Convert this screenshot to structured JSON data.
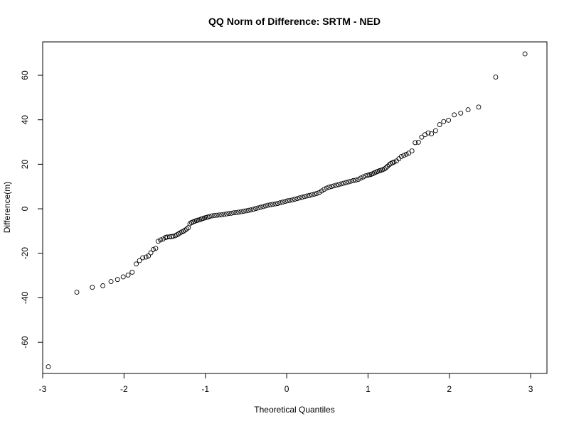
{
  "chart_data": {
    "type": "scatter",
    "title": "QQ Norm of Difference: SRTM - NED",
    "xlabel": "Theoretical Quantiles",
    "ylabel": "Difference(m)",
    "xlim": [
      -3.0,
      3.2
    ],
    "ylim": [
      -74,
      75
    ],
    "x_ticks": [
      -3,
      -2,
      -1,
      0,
      1,
      2,
      3
    ],
    "y_ticks": [
      -60,
      -40,
      -20,
      0,
      20,
      40,
      60
    ],
    "x_tick_labels": [
      "-3",
      "-2",
      "-1",
      "0",
      "1",
      "2",
      "3"
    ],
    "y_tick_labels": [
      "-60",
      "-40",
      "-20",
      "0",
      "20",
      "40",
      "60"
    ],
    "grid": false,
    "marker": "open-circle",
    "colors": {
      "marker_stroke": "#000000",
      "frame": "#000000",
      "background": "#ffffff"
    },
    "points": [
      [
        -2.93,
        -71.0
      ],
      [
        -2.58,
        -37.5
      ],
      [
        -2.39,
        -35.3
      ],
      [
        -2.26,
        -34.6
      ],
      [
        -2.16,
        -32.7
      ],
      [
        -2.08,
        -31.8
      ],
      [
        -2.01,
        -30.6
      ],
      [
        -1.95,
        -29.8
      ],
      [
        -1.9,
        -28.5
      ],
      [
        -1.85,
        -24.8
      ],
      [
        -1.81,
        -23.3
      ],
      [
        -1.77,
        -22.0
      ],
      [
        -1.73,
        -21.7
      ],
      [
        -1.7,
        -21.2
      ],
      [
        -1.67,
        -19.8
      ],
      [
        -1.64,
        -18.3
      ],
      [
        -1.61,
        -17.8
      ],
      [
        -1.58,
        -14.6
      ],
      [
        -1.55,
        -14.0
      ],
      [
        -1.52,
        -13.6
      ],
      [
        -1.49,
        -12.9
      ],
      [
        -1.47,
        -12.7
      ],
      [
        -1.44,
        -12.6
      ],
      [
        -1.42,
        -12.5
      ],
      [
        -1.4,
        -12.4
      ],
      [
        -1.37,
        -12.1
      ],
      [
        -1.35,
        -11.7
      ],
      [
        -1.33,
        -11.3
      ],
      [
        -1.31,
        -10.8
      ],
      [
        -1.29,
        -10.4
      ],
      [
        -1.27,
        -10.1
      ],
      [
        -1.25,
        -9.6
      ],
      [
        -1.23,
        -9.1
      ],
      [
        -1.21,
        -8.5
      ],
      [
        -1.19,
        -6.7
      ],
      [
        -1.17,
        -6.2
      ],
      [
        -1.15,
        -5.9
      ],
      [
        -1.13,
        -5.6
      ],
      [
        -1.11,
        -5.3
      ],
      [
        -1.09,
        -5.1
      ],
      [
        -1.07,
        -4.9
      ],
      [
        -1.05,
        -4.6
      ],
      [
        -1.03,
        -4.4
      ],
      [
        -1.01,
        -4.1
      ],
      [
        -0.99,
        -3.9
      ],
      [
        -0.97,
        -3.7
      ],
      [
        -0.95,
        -3.5
      ],
      [
        -0.92,
        -3.2
      ],
      [
        -0.89,
        -3.0
      ],
      [
        -0.86,
        -2.9
      ],
      [
        -0.83,
        -2.8
      ],
      [
        -0.8,
        -2.7
      ],
      [
        -0.77,
        -2.5
      ],
      [
        -0.74,
        -2.3
      ],
      [
        -0.71,
        -2.1
      ],
      [
        -0.68,
        -2.0
      ],
      [
        -0.65,
        -1.8
      ],
      [
        -0.62,
        -1.7
      ],
      [
        -0.59,
        -1.5
      ],
      [
        -0.56,
        -1.3
      ],
      [
        -0.53,
        -1.1
      ],
      [
        -0.5,
        -0.9
      ],
      [
        -0.47,
        -0.7
      ],
      [
        -0.44,
        -0.5
      ],
      [
        -0.41,
        -0.2
      ],
      [
        -0.38,
        0.1
      ],
      [
        -0.35,
        0.4
      ],
      [
        -0.32,
        0.7
      ],
      [
        -0.29,
        1.0
      ],
      [
        -0.26,
        1.3
      ],
      [
        -0.23,
        1.6
      ],
      [
        -0.2,
        1.8
      ],
      [
        -0.17,
        2.0
      ],
      [
        -0.14,
        2.2
      ],
      [
        -0.11,
        2.4
      ],
      [
        -0.08,
        2.7
      ],
      [
        -0.05,
        3.0
      ],
      [
        -0.02,
        3.3
      ],
      [
        0.01,
        3.6
      ],
      [
        0.04,
        3.8
      ],
      [
        0.07,
        4.0
      ],
      [
        0.1,
        4.3
      ],
      [
        0.13,
        4.6
      ],
      [
        0.16,
        4.9
      ],
      [
        0.19,
        5.2
      ],
      [
        0.22,
        5.5
      ],
      [
        0.25,
        5.8
      ],
      [
        0.28,
        6.0
      ],
      [
        0.31,
        6.3
      ],
      [
        0.34,
        6.6
      ],
      [
        0.37,
        6.9
      ],
      [
        0.4,
        7.3
      ],
      [
        0.43,
        8.0
      ],
      [
        0.46,
        8.7
      ],
      [
        0.49,
        9.3
      ],
      [
        0.52,
        9.7
      ],
      [
        0.55,
        10.0
      ],
      [
        0.58,
        10.3
      ],
      [
        0.61,
        10.6
      ],
      [
        0.64,
        10.9
      ],
      [
        0.67,
        11.2
      ],
      [
        0.7,
        11.5
      ],
      [
        0.73,
        11.8
      ],
      [
        0.76,
        12.1
      ],
      [
        0.79,
        12.4
      ],
      [
        0.82,
        12.7
      ],
      [
        0.85,
        12.9
      ],
      [
        0.88,
        13.2
      ],
      [
        0.91,
        13.8
      ],
      [
        0.94,
        14.3
      ],
      [
        0.97,
        14.8
      ],
      [
        1.0,
        15.1
      ],
      [
        1.02,
        15.3
      ],
      [
        1.04,
        15.5
      ],
      [
        1.06,
        15.8
      ],
      [
        1.08,
        16.2
      ],
      [
        1.1,
        16.5
      ],
      [
        1.12,
        16.8
      ],
      [
        1.14,
        17.1
      ],
      [
        1.16,
        17.3
      ],
      [
        1.18,
        17.6
      ],
      [
        1.2,
        17.9
      ],
      [
        1.22,
        18.4
      ],
      [
        1.24,
        19.1
      ],
      [
        1.26,
        19.8
      ],
      [
        1.28,
        20.3
      ],
      [
        1.3,
        20.7
      ],
      [
        1.32,
        21.0
      ],
      [
        1.35,
        21.5
      ],
      [
        1.38,
        22.5
      ],
      [
        1.41,
        23.5
      ],
      [
        1.44,
        24.0
      ],
      [
        1.47,
        24.5
      ],
      [
        1.5,
        25.0
      ],
      [
        1.54,
        26.0
      ],
      [
        1.58,
        29.7
      ],
      [
        1.62,
        29.9
      ],
      [
        1.66,
        32.2
      ],
      [
        1.7,
        33.3
      ],
      [
        1.74,
        34.1
      ],
      [
        1.78,
        33.7
      ],
      [
        1.83,
        35.1
      ],
      [
        1.88,
        37.8
      ],
      [
        1.93,
        39.2
      ],
      [
        1.99,
        39.8
      ],
      [
        2.06,
        42.2
      ],
      [
        2.14,
        43.0
      ],
      [
        2.23,
        44.5
      ],
      [
        2.36,
        45.7
      ],
      [
        2.57,
        59.2
      ],
      [
        2.93,
        69.6
      ]
    ]
  }
}
